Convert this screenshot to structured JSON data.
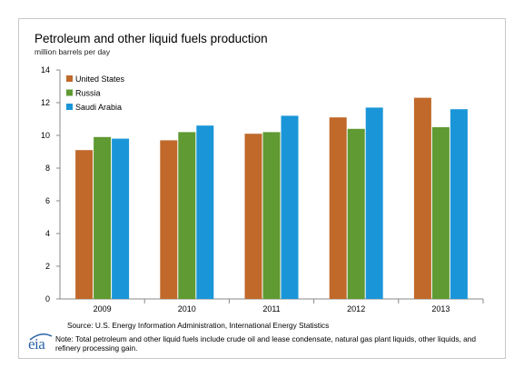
{
  "chart_data": {
    "type": "bar",
    "title": "Petroleum and other liquid fuels production",
    "subtitle": "million barrels per day",
    "categories": [
      "2009",
      "2010",
      "2011",
      "2012",
      "2013"
    ],
    "series": [
      {
        "name": "United States",
        "color": "#c0692a",
        "values": [
          9.1,
          9.7,
          10.1,
          11.1,
          12.3
        ]
      },
      {
        "name": "Russia",
        "color": "#5f9a32",
        "values": [
          9.9,
          10.2,
          10.2,
          10.4,
          10.5
        ]
      },
      {
        "name": "Saudi Arabia",
        "color": "#1a96d8",
        "values": [
          9.8,
          10.6,
          11.2,
          11.7,
          11.6
        ]
      }
    ],
    "yticks": [
      0,
      2,
      4,
      6,
      8,
      10,
      12,
      14
    ],
    "ylim": [
      0,
      14
    ],
    "legend_position": "top-left",
    "grid": false
  },
  "source": "Source: U.S. Energy Information Administration, International Energy Statistics",
  "note": "Note: Total petroleum and other liquid fuels include crude oil and lease condensate, natural gas plant liquids, other liquids, and refinery processing gain.",
  "logo": {
    "text": "eia",
    "color": "#2a63a8"
  }
}
